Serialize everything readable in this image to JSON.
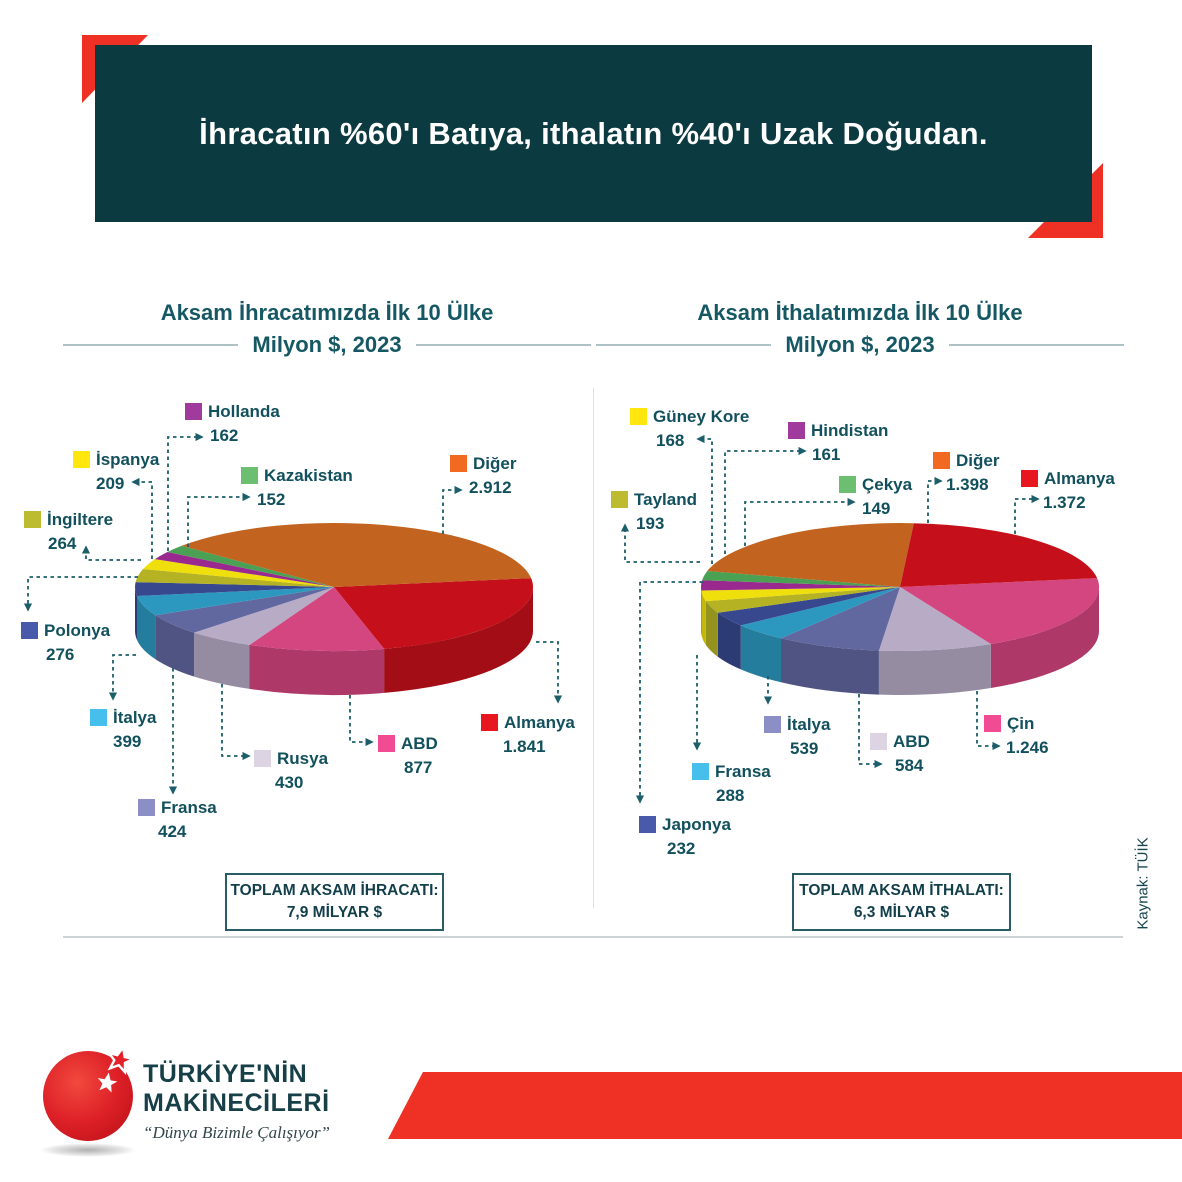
{
  "header": {
    "title": "İhracatın %60'ı Batıya, ithalatın %40'ı Uzak Doğudan."
  },
  "source_note": "Kaynak: TÜİK",
  "charts": {
    "export": {
      "title_line1": "Aksam İhracatımızda İlk 10 Ülke",
      "title_line2": "Milyon $, 2023",
      "total_label": "TOPLAM AKSAM İHRACATI:",
      "total_value": "7,9 MİLYAR $",
      "labels": [
        {
          "name": "Hollanda",
          "value": "162",
          "color": "#a03a9c"
        },
        {
          "name": "İspanya",
          "value": "209",
          "color": "#ffe70d"
        },
        {
          "name": "Kazakistan",
          "value": "152",
          "color": "#6cbf70"
        },
        {
          "name": "İngiltere",
          "value": "264",
          "color": "#bdbc30"
        },
        {
          "name": "Diğer",
          "value": "2.912",
          "color": "#f26a22"
        },
        {
          "name": "Polonya",
          "value": "276",
          "color": "#4a5aab"
        },
        {
          "name": "İtalya",
          "value": "399",
          "color": "#47bfec"
        },
        {
          "name": "Fransa",
          "value": "424",
          "color": "#8c8fc6"
        },
        {
          "name": "Rusya",
          "value": "430",
          "color": "#dcd3e3"
        },
        {
          "name": "ABD",
          "value": "877",
          "color": "#f04b93"
        },
        {
          "name": "Almanya",
          "value": "1.841",
          "color": "#e8161e"
        }
      ]
    },
    "import": {
      "title_line1": "Aksam İthalatımızda İlk 10 Ülke",
      "title_line2": "Milyon $, 2023",
      "total_label": "TOPLAM AKSAM İTHALATI:",
      "total_value": "6,3 MİLYAR $",
      "labels": [
        {
          "name": "Güney Kore",
          "value": "168",
          "color": "#ffe70d"
        },
        {
          "name": "Hindistan",
          "value": "161",
          "color": "#a03a9c"
        },
        {
          "name": "Çekya",
          "value": "149",
          "color": "#6cbf70"
        },
        {
          "name": "Diğer",
          "value": "1.398",
          "color": "#f26a22"
        },
        {
          "name": "Almanya",
          "value": "1.372",
          "color": "#e8161e"
        },
        {
          "name": "Tayland",
          "value": "193",
          "color": "#bdbc30"
        },
        {
          "name": "İtalya",
          "value": "539",
          "color": "#8c8fc6"
        },
        {
          "name": "Fransa",
          "value": "288",
          "color": "#47bfec"
        },
        {
          "name": "Japonya",
          "value": "232",
          "color": "#4a5aab"
        },
        {
          "name": "ABD",
          "value": "584",
          "color": "#dcd3e3"
        },
        {
          "name": "Çin",
          "value": "1.246",
          "color": "#f04b93"
        }
      ]
    }
  },
  "chart_data": [
    {
      "type": "pie",
      "title": "Aksam İhracatımızda İlk 10 Ülke",
      "subtitle": "Milyon $, 2023",
      "unit": "Milyon $",
      "total": "7,9 MİLYAR $",
      "slices": [
        {
          "name": "Almanya",
          "value": 1841,
          "color": "#c5101b"
        },
        {
          "name": "ABD",
          "value": 877,
          "color": "#d4467f"
        },
        {
          "name": "Rusya",
          "value": 430,
          "color": "#b7abc6"
        },
        {
          "name": "Fransa",
          "value": 424,
          "color": "#61679f"
        },
        {
          "name": "İtalya",
          "value": 399,
          "color": "#2d98bf"
        },
        {
          "name": "Polonya",
          "value": 276,
          "color": "#37488f"
        },
        {
          "name": "İngiltere",
          "value": 264,
          "color": "#b5b324"
        },
        {
          "name": "İspanya",
          "value": 209,
          "color": "#efdf0c"
        },
        {
          "name": "Hollanda",
          "value": 162,
          "color": "#99288f"
        },
        {
          "name": "Kazakistan",
          "value": 152,
          "color": "#4ba153"
        },
        {
          "name": "Diğer",
          "value": 2912,
          "color": "#c2631f"
        }
      ]
    },
    {
      "type": "pie",
      "title": "Aksam İthalatımızda İlk 10 Ülke",
      "subtitle": "Milyon $, 2023",
      "unit": "Milyon $",
      "total": "6,3 MİLYAR $",
      "slices": [
        {
          "name": "Çin",
          "value": 1246,
          "color": "#d4467f"
        },
        {
          "name": "ABD",
          "value": 584,
          "color": "#b7abc6"
        },
        {
          "name": "İtalya",
          "value": 539,
          "color": "#61679f"
        },
        {
          "name": "Fransa",
          "value": 288,
          "color": "#2d98bf"
        },
        {
          "name": "Japonya",
          "value": 232,
          "color": "#37488f"
        },
        {
          "name": "Tayland",
          "value": 193,
          "color": "#b5b324"
        },
        {
          "name": "Güney Kore",
          "value": 168,
          "color": "#efdf0c"
        },
        {
          "name": "Hindistan",
          "value": 161,
          "color": "#99288f"
        },
        {
          "name": "Çekya",
          "value": 149,
          "color": "#4ba153"
        },
        {
          "name": "Diğer",
          "value": 1398,
          "color": "#c2631f"
        },
        {
          "name": "Almanya",
          "value": 1372,
          "color": "#c5101b"
        }
      ]
    }
  ],
  "footer": {
    "brand_line1": "TÜRKİYE'NİN",
    "brand_line2": "MAKİNECİLERİ",
    "tagline": "“Dünya Bizimle Çalışıyor”"
  }
}
